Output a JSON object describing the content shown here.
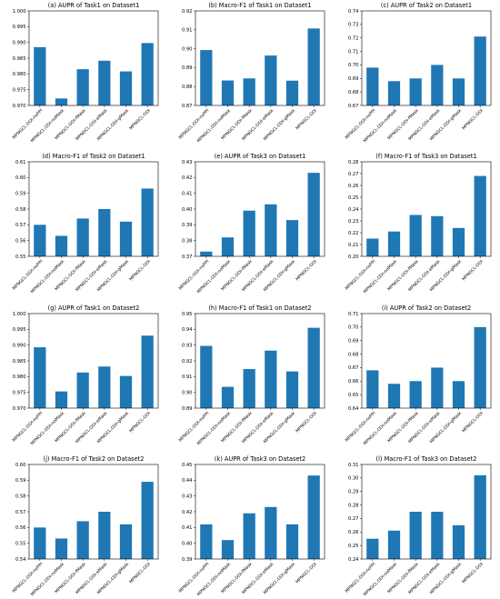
{
  "colors": {
    "bar": "#1f77b4"
  },
  "chart_data": [
    {
      "type": "bar",
      "title": "(a)  AUPR of Task1 on Dataset1",
      "categories": [
        "MPNGCL-DDI-noPPI",
        "MPNGCL-DDI-noMask",
        "MPNGCL-DDI-fMask",
        "MPNGCL-DDI-eMask",
        "MPNGCL-DDI-gMask",
        "MPNGCL-DDI"
      ],
      "values": [
        0.9885,
        0.9722,
        0.9815,
        0.9842,
        0.9808,
        0.9898
      ],
      "ylim": [
        0.97,
        1.0
      ],
      "yticks": [
        0.97,
        0.975,
        0.98,
        0.985,
        0.99,
        0.995,
        1.0
      ],
      "ytick_labels": [
        "0.970",
        "0.975",
        "0.980",
        "0.985",
        "0.990",
        "0.995",
        "1.000"
      ]
    },
    {
      "type": "bar",
      "title": "(b)  Macro-F1 of Task1 on Dataset1",
      "categories": [
        "MPNGCL-DDI-noPPI",
        "MPNGCL-DDI-noMask",
        "MPNGCL-DDI-fMask",
        "MPNGCL-DDI-eMask",
        "MPNGCL-DDI-gMask",
        "MPNGCL-DDI"
      ],
      "values": [
        0.8993,
        0.8832,
        0.8843,
        0.8964,
        0.8831,
        0.9107
      ],
      "ylim": [
        0.87,
        0.92
      ],
      "yticks": [
        0.87,
        0.88,
        0.89,
        0.9,
        0.91,
        0.92
      ],
      "ytick_labels": [
        "0.87",
        "0.88",
        "0.89",
        "0.90",
        "0.91",
        "0.92"
      ]
    },
    {
      "type": "bar",
      "title": "(c)  AUPR of Task2 on Dataset1",
      "categories": [
        "MPNGCL-DDI-noPPI",
        "MPNGCL-DDI-noMask",
        "MPNGCL-DDI-fMask",
        "MPNGCL-DDI-eMask",
        "MPNGCL-DDI-gMask",
        "MPNGCL-DDI"
      ],
      "values": [
        0.698,
        0.688,
        0.69,
        0.7,
        0.69,
        0.721
      ],
      "ylim": [
        0.67,
        0.74
      ],
      "yticks": [
        0.67,
        0.68,
        0.69,
        0.7,
        0.71,
        0.72,
        0.73,
        0.74
      ],
      "ytick_labels": [
        "0.67",
        "0.68",
        "0.69",
        "0.70",
        "0.71",
        "0.72",
        "0.73",
        "0.74"
      ]
    },
    {
      "type": "bar",
      "title": "(d)  Macro-F1 of Task2 on Dataset1",
      "categories": [
        "MPNGCL-DDI-noPPI",
        "MPNGCL-DDI-noMask",
        "MPNGCL-DDI-fMask",
        "MPNGCL-DDI-eMask",
        "MPNGCL-DDI-gMask",
        "MPNGCL-DDI"
      ],
      "values": [
        0.57,
        0.563,
        0.574,
        0.58,
        0.572,
        0.593
      ],
      "ylim": [
        0.55,
        0.61
      ],
      "yticks": [
        0.55,
        0.56,
        0.57,
        0.58,
        0.59,
        0.6,
        0.61
      ],
      "ytick_labels": [
        "0.55",
        "0.56",
        "0.57",
        "0.58",
        "0.59",
        "0.60",
        "0.61"
      ]
    },
    {
      "type": "bar",
      "title": "(e)  AUPR of Task3 on Dataset1",
      "categories": [
        "MPNGCL-DDI-noPPI",
        "MPNGCL-DDI-noMask",
        "MPNGCL-DDI-fMask",
        "MPNGCL-DDI-eMask",
        "MPNGCL-DDI-gMask",
        "MPNGCL-DDI"
      ],
      "values": [
        0.373,
        0.382,
        0.399,
        0.403,
        0.393,
        0.423
      ],
      "ylim": [
        0.37,
        0.43
      ],
      "yticks": [
        0.37,
        0.38,
        0.39,
        0.4,
        0.41,
        0.42,
        0.43
      ],
      "ytick_labels": [
        "0.37",
        "0.38",
        "0.39",
        "0.40",
        "0.41",
        "0.42",
        "0.43"
      ]
    },
    {
      "type": "bar",
      "title": "(f)  Macro-F1 of Task3 on Dataset1",
      "categories": [
        "MPNGCL-DDI-noPPI",
        "MPNGCL-DDI-noMask",
        "MPNGCL-DDI-fMask",
        "MPNGCL-DDI-eMask",
        "MPNGCL-DDI-gMask",
        "MPNGCL-DDI"
      ],
      "values": [
        0.215,
        0.221,
        0.235,
        0.234,
        0.224,
        0.268
      ],
      "ylim": [
        0.2,
        0.28
      ],
      "yticks": [
        0.2,
        0.21,
        0.22,
        0.23,
        0.24,
        0.25,
        0.26,
        0.27,
        0.28
      ],
      "ytick_labels": [
        "0.20",
        "0.21",
        "0.22",
        "0.23",
        "0.24",
        "0.25",
        "0.26",
        "0.27",
        "0.28"
      ]
    },
    {
      "type": "bar",
      "title": "(g)  AUPR of Task1 on Dataset2",
      "categories": [
        "MPNGCL-DDI-noPPI",
        "MPNGCL-DDI-noMask",
        "MPNGCL-DDI-fMask",
        "MPNGCL-DDI-eMask",
        "MPNGCL-DDI-gMask",
        "MPNGCL-DDI"
      ],
      "values": [
        0.9893,
        0.9753,
        0.9813,
        0.9832,
        0.9802,
        0.993
      ],
      "ylim": [
        0.97,
        1.0
      ],
      "yticks": [
        0.97,
        0.975,
        0.98,
        0.985,
        0.99,
        0.995,
        1.0
      ],
      "ytick_labels": [
        "0.970",
        "0.975",
        "0.980",
        "0.985",
        "0.990",
        "0.995",
        "1.000"
      ]
    },
    {
      "type": "bar",
      "title": "(h)  Macro-F1 of Task1 on Dataset2",
      "categories": [
        "MPNGCL-DDI-noPPI",
        "MPNGCL-DDI-noMask",
        "MPNGCL-DDI-fMask",
        "MPNGCL-DDI-eMask",
        "MPNGCL-DDI-gMask",
        "MPNGCL-DDI"
      ],
      "values": [
        0.9295,
        0.9035,
        0.9148,
        0.9265,
        0.9133,
        0.941
      ],
      "ylim": [
        0.89,
        0.95
      ],
      "yticks": [
        0.89,
        0.9,
        0.91,
        0.92,
        0.93,
        0.94,
        0.95
      ],
      "ytick_labels": [
        "0.89",
        "0.90",
        "0.91",
        "0.92",
        "0.93",
        "0.94",
        "0.95"
      ]
    },
    {
      "type": "bar",
      "title": "(i)  AUPR of Task2 on Dataset2",
      "categories": [
        "MPNGCL-DDI-noPPI",
        "MPNGCL-DDI-noMask",
        "MPNGCL-DDI-fMask",
        "MPNGCL-DDI-eMask",
        "MPNGCL-DDI-gMask",
        "MPNGCL-DDI"
      ],
      "values": [
        0.668,
        0.658,
        0.66,
        0.67,
        0.66,
        0.7
      ],
      "ylim": [
        0.64,
        0.71
      ],
      "yticks": [
        0.64,
        0.65,
        0.66,
        0.67,
        0.68,
        0.69,
        0.7,
        0.71
      ],
      "ytick_labels": [
        "0.64",
        "0.65",
        "0.66",
        "0.67",
        "0.68",
        "0.69",
        "0.70",
        "0.71"
      ]
    },
    {
      "type": "bar",
      "title": "(j)  Macro-F1 of Task2 on Dataset2",
      "categories": [
        "MPNGCL-DDI-noPPI",
        "MPNGCL-DDI-noMask",
        "MPNGCL-DDI-fMask",
        "MPNGCL-DDI-eMask",
        "MPNGCL-DDI-gMask",
        "MPNGCL-DDI"
      ],
      "values": [
        0.56,
        0.553,
        0.564,
        0.57,
        0.562,
        0.589
      ],
      "ylim": [
        0.54,
        0.6
      ],
      "yticks": [
        0.54,
        0.55,
        0.56,
        0.57,
        0.58,
        0.59,
        0.6
      ],
      "ytick_labels": [
        "0.54",
        "0.55",
        "0.56",
        "0.57",
        "0.58",
        "0.59",
        "0.60"
      ]
    },
    {
      "type": "bar",
      "title": "(k)  AUPR of Task3 on Dataset2",
      "categories": [
        "MPNGCL-DDI-noPPI",
        "MPNGCL-DDI-noMask",
        "MPNGCL-DDI-fMask",
        "MPNGCL-DDI-eMask",
        "MPNGCL-DDI-gMask",
        "MPNGCL-DDI"
      ],
      "values": [
        0.412,
        0.402,
        0.419,
        0.423,
        0.412,
        0.443
      ],
      "ylim": [
        0.39,
        0.45
      ],
      "yticks": [
        0.39,
        0.4,
        0.41,
        0.42,
        0.43,
        0.44,
        0.45
      ],
      "ytick_labels": [
        "0.39",
        "0.40",
        "0.41",
        "0.42",
        "0.43",
        "0.44",
        "0.45"
      ]
    },
    {
      "type": "bar",
      "title": "(l)  Macro-F1 of Task3 on Dataset2",
      "categories": [
        "MPNGCL-DDI-noPPI",
        "MPNGCL-DDI-noMask",
        "MPNGCL-DDI-fMask",
        "MPNGCL-DDI-eMask",
        "MPNGCL-DDI-gMask",
        "MPNGCL-DDI"
      ],
      "values": [
        0.255,
        0.261,
        0.275,
        0.275,
        0.265,
        0.302
      ],
      "ylim": [
        0.24,
        0.31
      ],
      "yticks": [
        0.24,
        0.25,
        0.26,
        0.27,
        0.28,
        0.29,
        0.3,
        0.31
      ],
      "ytick_labels": [
        "0.24",
        "0.25",
        "0.26",
        "0.27",
        "0.28",
        "0.29",
        "0.30",
        "0.31"
      ]
    }
  ]
}
